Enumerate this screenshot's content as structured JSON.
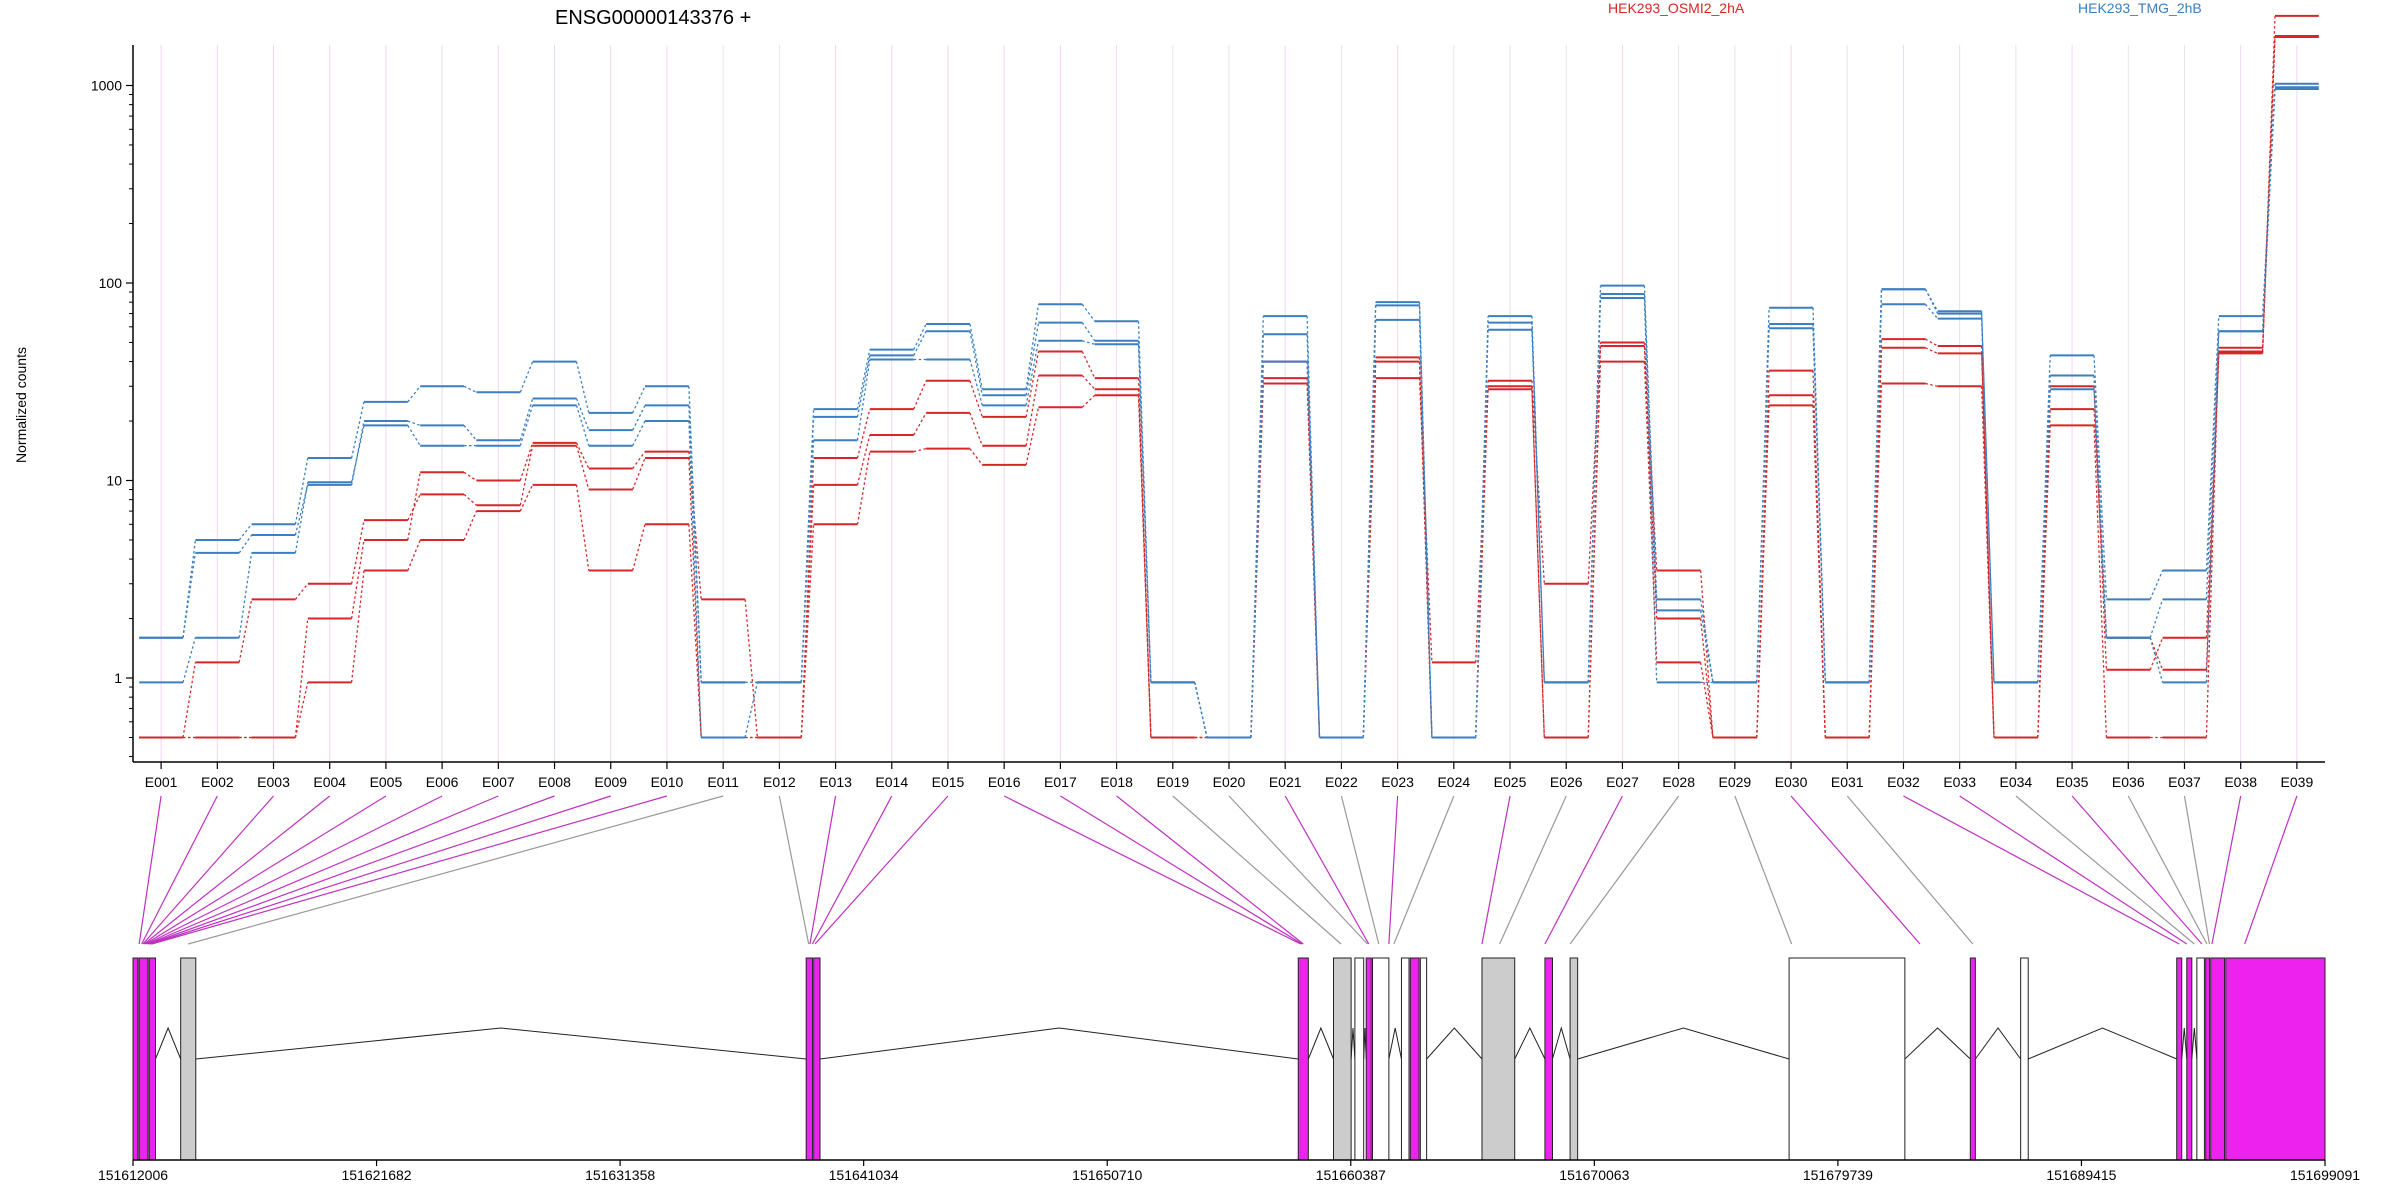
{
  "chart_data": {
    "type": "line",
    "title": "ENSG00000143376 +",
    "ylabel": "Normalized counts",
    "xlabel": "",
    "y_scale": "log",
    "y_ticks": [
      1,
      10,
      100,
      1000
    ],
    "y_tick_labels": [
      "1",
      "10",
      "100",
      "1000"
    ],
    "categories": [
      "E001",
      "E002",
      "E003",
      "E004",
      "E005",
      "E006",
      "E007",
      "E008",
      "E009",
      "E010",
      "E011",
      "E012",
      "E013",
      "E014",
      "E015",
      "E016",
      "E017",
      "E018",
      "E019",
      "E020",
      "E021",
      "E022",
      "E023",
      "E024",
      "E025",
      "E026",
      "E027",
      "E028",
      "E029",
      "E030",
      "E031",
      "E032",
      "E033",
      "E034",
      "E035",
      "E036",
      "E037",
      "E038",
      "E039"
    ],
    "legend": [
      {
        "name": "HEK293_OSMI2_2hA",
        "color": "#d62728"
      },
      {
        "name": "HEK293_TMG_2hB",
        "color": "#3a7fc1"
      }
    ],
    "series": [
      {
        "condition": "HEK293_OSMI2_2hA",
        "color": "#d62728",
        "values": [
          0.5,
          0.5,
          0.5,
          2.0,
          5.0,
          11.0,
          10.0,
          15.5,
          11.5,
          14.0,
          2.5,
          0.5,
          13.0,
          23.0,
          32.0,
          21.0,
          45.0,
          33.0,
          0.5,
          0.5,
          40.0,
          0.5,
          42.0,
          0.5,
          32.0,
          3.0,
          50.0,
          3.5,
          0.5,
          36.0,
          0.5,
          52.0,
          48.0,
          0.5,
          30.0,
          1.1,
          1.6,
          44.0,
          2250
        ]
      },
      {
        "condition": "HEK293_OSMI2_2hA",
        "color": "#d62728",
        "values": [
          0.5,
          1.2,
          2.5,
          3.0,
          6.3,
          8.5,
          7.5,
          15.0,
          9.0,
          13.0,
          0.5,
          0.5,
          9.5,
          17.0,
          22.0,
          15.0,
          34.0,
          29.0,
          0.5,
          0.5,
          33.0,
          0.5,
          40.0,
          0.5,
          30.0,
          0.5,
          48.0,
          2.0,
          0.5,
          27.0,
          0.5,
          47.0,
          44.0,
          0.5,
          23.0,
          1.6,
          1.1,
          45.0,
          1780
        ]
      },
      {
        "condition": "HEK293_OSMI2_2hA",
        "color": "#d62728",
        "values": [
          0.5,
          0.5,
          0.5,
          0.95,
          3.5,
          5.0,
          7.0,
          9.5,
          3.5,
          6.0,
          0.5,
          0.5,
          6.0,
          14.0,
          14.5,
          12.0,
          23.5,
          27.0,
          0.5,
          0.5,
          31.0,
          0.5,
          33.0,
          1.2,
          29.0,
          0.5,
          40.0,
          1.2,
          0.5,
          24.0,
          0.5,
          31.0,
          30.0,
          0.5,
          19.0,
          0.5,
          0.5,
          47.0,
          1760
        ]
      },
      {
        "condition": "HEK293_TMG_2hB",
        "color": "#3a7fc1",
        "values": [
          1.6,
          5.0,
          6.0,
          13.0,
          25.0,
          30.0,
          28.0,
          40.0,
          22.0,
          30.0,
          0.95,
          0.95,
          23.0,
          46.0,
          62.0,
          29.0,
          78.0,
          64.0,
          0.95,
          0.5,
          68.0,
          0.5,
          80.0,
          0.5,
          68.0,
          0.95,
          97.0,
          2.5,
          0.95,
          75.0,
          0.95,
          93.0,
          72.0,
          0.95,
          43.0,
          2.5,
          3.5,
          68.0,
          1020
        ]
      },
      {
        "condition": "HEK293_TMG_2hB",
        "color": "#3a7fc1",
        "values": [
          1.6,
          4.3,
          5.3,
          9.5,
          20.0,
          19.0,
          16.0,
          26.0,
          18.0,
          24.0,
          0.95,
          0.95,
          21.0,
          43.0,
          57.0,
          27.0,
          63.0,
          51.0,
          0.95,
          0.5,
          55.0,
          0.5,
          77.0,
          0.5,
          63.0,
          0.95,
          88.0,
          2.2,
          0.95,
          62.0,
          0.95,
          93.0,
          70.0,
          0.95,
          34.0,
          1.6,
          2.5,
          57.0,
          980
        ]
      },
      {
        "condition": "HEK293_TMG_2hB",
        "color": "#3a7fc1",
        "values": [
          0.95,
          1.6,
          4.3,
          9.8,
          19.0,
          15.0,
          15.0,
          24.0,
          15.0,
          20.0,
          0.5,
          0.95,
          16.0,
          41.0,
          41.0,
          24.0,
          51.0,
          49.0,
          0.95,
          0.5,
          40.0,
          0.5,
          65.0,
          0.5,
          58.0,
          0.95,
          84.0,
          0.95,
          0.95,
          59.0,
          0.95,
          78.0,
          66.0,
          0.95,
          29.0,
          1.6,
          0.95,
          57.0,
          960
        ]
      }
    ],
    "gene_model": {
      "coordinate_labels": [
        "151612006",
        "151621682",
        "151631358",
        "151641034",
        "151650710",
        "151660387",
        "151670063",
        "151679739",
        "151689415",
        "151699091"
      ],
      "genome_range": [
        151612006,
        151699091
      ],
      "exon_connectors": [
        {
          "exon": "E001",
          "genomic": 151612250,
          "highlight": true
        },
        {
          "exon": "E002",
          "genomic": 151612350,
          "highlight": true
        },
        {
          "exon": "E003",
          "genomic": 151612400,
          "highlight": true
        },
        {
          "exon": "E004",
          "genomic": 151612450,
          "highlight": true
        },
        {
          "exon": "E005",
          "genomic": 151612500,
          "highlight": true
        },
        {
          "exon": "E006",
          "genomic": 151612550,
          "highlight": true
        },
        {
          "exon": "E007",
          "genomic": 151612600,
          "highlight": true
        },
        {
          "exon": "E008",
          "genomic": 151612650,
          "highlight": true
        },
        {
          "exon": "E009",
          "genomic": 151612700,
          "highlight": true
        },
        {
          "exon": "E010",
          "genomic": 151612750,
          "highlight": true
        },
        {
          "exon": "E011",
          "genomic": 151614200,
          "highlight": false
        },
        {
          "exon": "E012",
          "genomic": 151638850,
          "highlight": false
        },
        {
          "exon": "E013",
          "genomic": 151638900,
          "highlight": true
        },
        {
          "exon": "E014",
          "genomic": 151639000,
          "highlight": true
        },
        {
          "exon": "E015",
          "genomic": 151639100,
          "highlight": true
        },
        {
          "exon": "E016",
          "genomic": 151658400,
          "highlight": true
        },
        {
          "exon": "E017",
          "genomic": 151658450,
          "highlight": true
        },
        {
          "exon": "E018",
          "genomic": 151658500,
          "highlight": true
        },
        {
          "exon": "E019",
          "genomic": 151660000,
          "highlight": false
        },
        {
          "exon": "E020",
          "genomic": 151661050,
          "highlight": false
        },
        {
          "exon": "E021",
          "genomic": 151661100,
          "highlight": true
        },
        {
          "exon": "E022",
          "genomic": 151661500,
          "highlight": false
        },
        {
          "exon": "E023",
          "genomic": 151661900,
          "highlight": true
        },
        {
          "exon": "E024",
          "genomic": 151662100,
          "highlight": false
        },
        {
          "exon": "E025",
          "genomic": 151665600,
          "highlight": true
        },
        {
          "exon": "E026",
          "genomic": 151666300,
          "highlight": false
        },
        {
          "exon": "E027",
          "genomic": 151668100,
          "highlight": true
        },
        {
          "exon": "E028",
          "genomic": 151669100,
          "highlight": false
        },
        {
          "exon": "E029",
          "genomic": 151677900,
          "highlight": false
        },
        {
          "exon": "E030",
          "genomic": 151683000,
          "highlight": true
        },
        {
          "exon": "E031",
          "genomic": 151685100,
          "highlight": false
        },
        {
          "exon": "E032",
          "genomic": 151693300,
          "highlight": true
        },
        {
          "exon": "E033",
          "genomic": 151693600,
          "highlight": true
        },
        {
          "exon": "E034",
          "genomic": 151693900,
          "highlight": false
        },
        {
          "exon": "E035",
          "genomic": 151694200,
          "highlight": true
        },
        {
          "exon": "E036",
          "genomic": 151694400,
          "highlight": false
        },
        {
          "exon": "E037",
          "genomic": 151694500,
          "highlight": false
        },
        {
          "exon": "E038",
          "genomic": 151694600,
          "highlight": true
        },
        {
          "exon": "E039",
          "genomic": 151695900,
          "highlight": true
        }
      ],
      "exon_boxes": [
        {
          "start": 151612006,
          "end": 151612200,
          "fill": "#ee22ee"
        },
        {
          "start": 151612250,
          "end": 151612600,
          "fill": "#ee22ee"
        },
        {
          "start": 151612650,
          "end": 151612900,
          "fill": "#ee22ee"
        },
        {
          "start": 151613900,
          "end": 151614500,
          "fill": "#cccccc"
        },
        {
          "start": 151638750,
          "end": 151639000,
          "fill": "#ee22ee"
        },
        {
          "start": 151639050,
          "end": 151639300,
          "fill": "#ee22ee"
        },
        {
          "start": 151658300,
          "end": 151658700,
          "fill": "#ee22ee"
        },
        {
          "start": 151659700,
          "end": 151660400,
          "fill": "#cccccc"
        },
        {
          "start": 151660550,
          "end": 151660900,
          "fill": "#ffffff"
        },
        {
          "start": 151661000,
          "end": 151661200,
          "fill": "#ee22ee"
        },
        {
          "start": 151661250,
          "end": 151661900,
          "fill": "#ffffff"
        },
        {
          "start": 151662400,
          "end": 151662700,
          "fill": "#ffffff"
        },
        {
          "start": 151662750,
          "end": 151663100,
          "fill": "#ee22ee"
        },
        {
          "start": 151663150,
          "end": 151663400,
          "fill": "#ffffff"
        },
        {
          "start": 151665600,
          "end": 151666900,
          "fill": "#cccccc"
        },
        {
          "start": 151668100,
          "end": 151668400,
          "fill": "#ee22ee"
        },
        {
          "start": 151669100,
          "end": 151669400,
          "fill": "#cccccc"
        },
        {
          "start": 151677800,
          "end": 151682400,
          "fill": "#ffffff"
        },
        {
          "start": 151685000,
          "end": 151685200,
          "fill": "#ee22ee"
        },
        {
          "start": 151687000,
          "end": 151687300,
          "fill": "#ffffff"
        },
        {
          "start": 151693200,
          "end": 151693400,
          "fill": "#ee22ee"
        },
        {
          "start": 151693600,
          "end": 151693800,
          "fill": "#ee22ee"
        },
        {
          "start": 151694000,
          "end": 151694300,
          "fill": "#ffffff"
        },
        {
          "start": 151694350,
          "end": 151694500,
          "fill": "#ee22ee"
        },
        {
          "start": 151694550,
          "end": 151695100,
          "fill": "#ee22ee"
        },
        {
          "start": 151695150,
          "end": 151699091,
          "fill": "#ee22ee"
        }
      ]
    }
  }
}
